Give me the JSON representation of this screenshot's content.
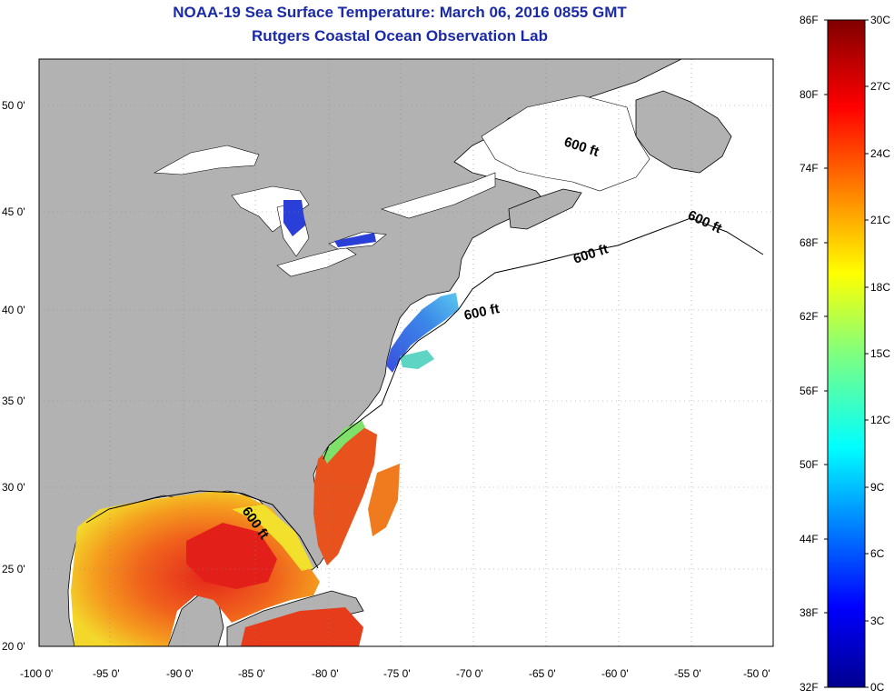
{
  "title": "NOAA-19 Sea Surface Temperature:  March 06, 2016 0855 GMT",
  "subtitle": "Rutgers Coastal Ocean Observation Lab",
  "lat_labels": [
    "50 0'",
    "45 0'",
    "40 0'",
    "35 0'",
    "30 0'",
    "25 0'",
    "20 0'"
  ],
  "lon_labels": [
    "-100 0'",
    "-95 0'",
    "-90 0'",
    "-85 0'",
    "-80 0'",
    "-75 0'",
    "-70 0'",
    "-65 0'",
    "-60 0'",
    "-55 0'",
    "-50 0'"
  ],
  "depth_labels": [
    "600 ft",
    "600 ft",
    "600 ft",
    "600 ft",
    "600 ft"
  ],
  "colorbar": {
    "fahrenheit": [
      "86F",
      "80F",
      "74F",
      "68F",
      "62F",
      "56F",
      "50F",
      "44F",
      "38F",
      "32F"
    ],
    "celsius": [
      "30C",
      "27C",
      "24C",
      "21C",
      "18C",
      "15C",
      "12C",
      "9C",
      "6C",
      "3C",
      "0C"
    ]
  },
  "colors": {
    "land": "#b2b2b2",
    "ocean_nodata": "#ffffff",
    "title": "#1a2aa8",
    "gulf_warm": "#e8281a",
    "gulf_mid": "#f7a21b",
    "gulf_cool": "#f2e22a",
    "shelf_cold": "#2a68d8"
  }
}
